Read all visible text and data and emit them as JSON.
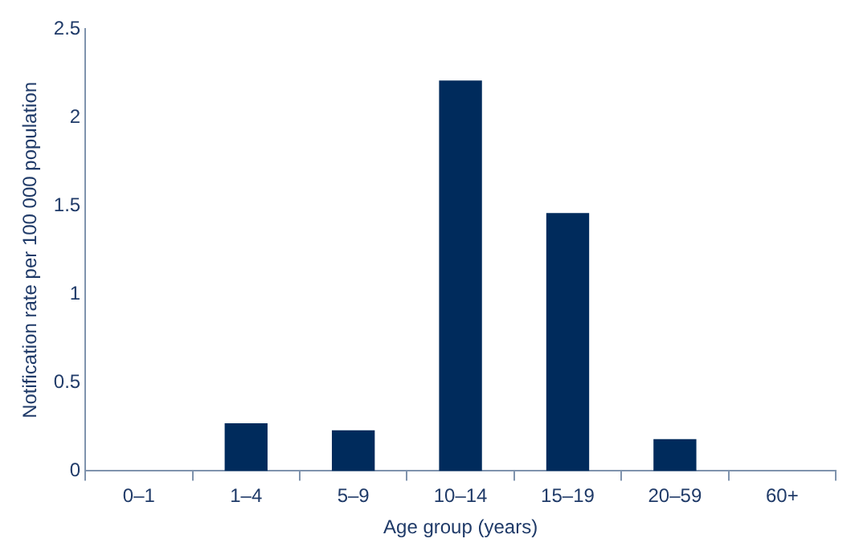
{
  "chart_data": {
    "type": "bar",
    "xlabel": "Age group (years)",
    "ylabel": "Notification rate per 100 000 population",
    "categories": [
      "0–1",
      "1–4",
      "5–9",
      "10–14",
      "15–19",
      "20–59",
      "60+"
    ],
    "values": [
      0,
      0.27,
      0.23,
      2.21,
      1.46,
      0.18,
      0
    ],
    "color": "#002b5c",
    "ylim": [
      0,
      2.5
    ],
    "yticks": [
      0,
      0.5,
      1,
      1.5,
      2,
      2.5
    ],
    "grid": false,
    "legend": false
  }
}
